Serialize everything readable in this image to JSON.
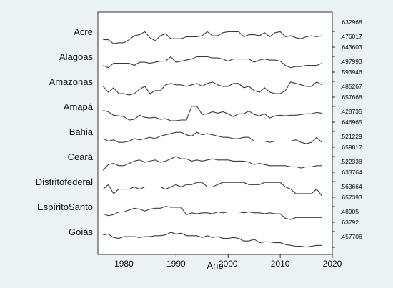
{
  "chart_data": {
    "type": "line",
    "xlabel": "Ano",
    "xlim": [
      1975,
      2020
    ],
    "x_ticks": [
      "1980",
      "1990",
      "2000",
      "2010",
      "2020"
    ],
    "panels": [
      {
        "name": "Acre",
        "max_label": ".632968",
        "min_label": ".476017",
        "ymin": 0.476017,
        "ymax": 0.632968,
        "x": [
          1976,
          1977,
          1978,
          1979,
          1980,
          1981,
          1982,
          1983,
          1984,
          1985,
          1986,
          1987,
          1988,
          1989,
          1990,
          1991,
          1992,
          1993,
          1994,
          1995,
          1996,
          1997,
          1998,
          1999,
          2000,
          2001,
          2002,
          2003,
          2004,
          2005,
          2006,
          2007,
          2008,
          2009,
          2010,
          2011,
          2012,
          2013,
          2014,
          2015,
          2016,
          2017,
          2018
        ],
        "values": [
          0.55,
          0.55,
          0.51,
          0.52,
          0.52,
          0.55,
          0.59,
          0.6,
          0.63,
          0.57,
          0.54,
          0.59,
          0.61,
          0.56,
          0.56,
          0.56,
          0.58,
          0.58,
          0.58,
          0.59,
          0.63,
          0.59,
          0.59,
          0.62,
          0.63,
          0.63,
          0.63,
          0.58,
          0.6,
          0.6,
          0.59,
          0.62,
          0.58,
          0.62,
          0.63,
          0.58,
          0.59,
          0.57,
          0.56,
          0.58,
          0.59,
          0.58,
          0.59
        ]
      },
      {
        "name": "Alagoas",
        "max_label": ".643603",
        "min_label": ".497993",
        "ymin": 0.497993,
        "ymax": 0.643603,
        "x": [
          1976,
          1977,
          1978,
          1979,
          1980,
          1981,
          1982,
          1983,
          1984,
          1985,
          1986,
          1987,
          1988,
          1989,
          1990,
          1991,
          1992,
          1993,
          1994,
          1995,
          1996,
          1997,
          1998,
          1999,
          2000,
          2001,
          2002,
          2003,
          2004,
          2005,
          2006,
          2007,
          2008,
          2009,
          2010,
          2011,
          2012,
          2013,
          2014,
          2015,
          2016,
          2017,
          2018
        ],
        "values": [
          0.56,
          0.54,
          0.58,
          0.58,
          0.58,
          0.58,
          0.56,
          0.59,
          0.59,
          0.58,
          0.59,
          0.6,
          0.6,
          0.64,
          0.59,
          0.6,
          0.61,
          0.62,
          0.64,
          0.64,
          0.64,
          0.63,
          0.63,
          0.62,
          0.6,
          0.62,
          0.62,
          0.62,
          0.62,
          0.59,
          0.61,
          0.62,
          0.61,
          0.61,
          0.6,
          0.56,
          0.54,
          0.55,
          0.55,
          0.56,
          0.56,
          0.56,
          0.58
        ]
      },
      {
        "name": "Amazonas",
        "max_label": ".593946",
        "min_label": ".485267",
        "ymin": 0.485267,
        "ymax": 0.593946,
        "x": [
          1976,
          1977,
          1978,
          1979,
          1980,
          1981,
          1982,
          1983,
          1984,
          1985,
          1986,
          1987,
          1988,
          1989,
          1990,
          1991,
          1992,
          1993,
          1994,
          1995,
          1996,
          1997,
          1998,
          1999,
          2000,
          2001,
          2002,
          2003,
          2004,
          2005,
          2006,
          2007,
          2008,
          2009,
          2010,
          2011,
          2012,
          2013,
          2014,
          2015,
          2016,
          2017,
          2018
        ],
        "values": [
          0.56,
          0.52,
          0.55,
          0.51,
          0.51,
          0.5,
          0.51,
          0.54,
          0.56,
          0.51,
          0.53,
          0.53,
          0.57,
          0.58,
          0.57,
          0.57,
          0.56,
          0.57,
          0.58,
          0.56,
          0.58,
          0.59,
          0.57,
          0.56,
          0.56,
          0.58,
          0.58,
          0.55,
          0.56,
          0.53,
          0.52,
          0.55,
          0.52,
          0.51,
          0.51,
          0.53,
          0.59,
          0.58,
          0.57,
          0.56,
          0.56,
          0.59,
          0.57
        ]
      },
      {
        "name": "Amapá",
        "max_label": ".657668",
        "min_label": ".428735",
        "ymin": 0.428735,
        "ymax": 0.657668,
        "x": [
          1976,
          1977,
          1978,
          1979,
          1980,
          1981,
          1982,
          1983,
          1984,
          1985,
          1986,
          1987,
          1988,
          1989,
          1990,
          1991,
          1992,
          1993,
          1994,
          1995,
          1996,
          1997,
          1998,
          1999,
          2000,
          2001,
          2002,
          2003,
          2004,
          2005,
          2006,
          2007,
          2008,
          2009,
          2010,
          2011,
          2012,
          2013,
          2014,
          2015,
          2016,
          2017,
          2018
        ],
        "values": [
          0.6,
          0.58,
          0.53,
          0.52,
          0.51,
          0.46,
          0.47,
          0.53,
          0.5,
          0.49,
          0.5,
          0.47,
          0.48,
          0.45,
          0.45,
          0.46,
          0.46,
          0.66,
          0.66,
          0.54,
          0.55,
          0.58,
          0.56,
          0.58,
          0.55,
          0.51,
          0.55,
          0.55,
          0.59,
          0.54,
          0.52,
          0.55,
          0.49,
          0.52,
          0.53,
          0.52,
          0.53,
          0.53,
          0.54,
          0.55,
          0.55,
          0.57,
          0.56
        ]
      },
      {
        "name": "Bahia",
        "max_label": ".646965",
        "min_label": ".521229",
        "ymin": 0.521229,
        "ymax": 0.646965,
        "x": [
          1976,
          1977,
          1978,
          1979,
          1980,
          1981,
          1982,
          1983,
          1984,
          1985,
          1986,
          1987,
          1988,
          1989,
          1990,
          1991,
          1992,
          1993,
          1994,
          1995,
          1996,
          1997,
          1998,
          1999,
          2000,
          2001,
          2002,
          2003,
          2004,
          2005,
          2006,
          2007,
          2008,
          2009,
          2010,
          2011,
          2012,
          2013,
          2014,
          2015,
          2016,
          2017,
          2018
        ],
        "values": [
          0.59,
          0.57,
          0.58,
          0.56,
          0.56,
          0.57,
          0.59,
          0.58,
          0.59,
          0.6,
          0.59,
          0.61,
          0.62,
          0.63,
          0.64,
          0.64,
          0.62,
          0.61,
          0.64,
          0.62,
          0.63,
          0.62,
          0.61,
          0.6,
          0.6,
          0.59,
          0.59,
          0.6,
          0.6,
          0.57,
          0.57,
          0.57,
          0.56,
          0.57,
          0.57,
          0.57,
          0.57,
          0.58,
          0.56,
          0.55,
          0.56,
          0.6,
          0.56
        ]
      },
      {
        "name": "Ceará",
        "max_label": ".659817",
        "min_label": ".522338",
        "ymin": 0.522338,
        "ymax": 0.659817,
        "x": [
          1976,
          1977,
          1978,
          1979,
          1980,
          1981,
          1982,
          1983,
          1984,
          1985,
          1986,
          1987,
          1988,
          1989,
          1990,
          1991,
          1992,
          1993,
          1994,
          1995,
          1996,
          1997,
          1998,
          1999,
          2000,
          2001,
          2002,
          2003,
          2004,
          2005,
          2006,
          2007,
          2008,
          2009,
          2010,
          2011,
          2012,
          2013,
          2014,
          2015,
          2016,
          2017,
          2018
        ],
        "values": [
          0.54,
          0.59,
          0.6,
          0.58,
          0.58,
          0.6,
          0.62,
          0.63,
          0.61,
          0.62,
          0.63,
          0.61,
          0.62,
          0.64,
          0.66,
          0.64,
          0.64,
          0.62,
          0.63,
          0.62,
          0.63,
          0.64,
          0.63,
          0.63,
          0.63,
          0.62,
          0.62,
          0.62,
          0.61,
          0.59,
          0.6,
          0.59,
          0.58,
          0.58,
          0.58,
          0.58,
          0.57,
          0.57,
          0.56,
          0.57,
          0.57,
          0.58,
          0.58
        ]
      },
      {
        "name": "Distritofederal",
        "max_label": ".633764",
        "min_label": ".563664",
        "ymin": 0.563664,
        "ymax": 0.633764,
        "x": [
          1976,
          1977,
          1978,
          1979,
          1980,
          1981,
          1982,
          1983,
          1984,
          1985,
          1986,
          1987,
          1988,
          1989,
          1990,
          1991,
          1992,
          1993,
          1994,
          1995,
          1996,
          1997,
          1998,
          1999,
          2000,
          2001,
          2002,
          2003,
          2004,
          2005,
          2006,
          2007,
          2008,
          2009,
          2010,
          2011,
          2012,
          2013,
          2014,
          2015,
          2016,
          2017,
          2018
        ],
        "values": [
          0.6,
          0.62,
          0.58,
          0.6,
          0.6,
          0.6,
          0.61,
          0.6,
          0.61,
          0.61,
          0.61,
          0.61,
          0.6,
          0.61,
          0.62,
          0.61,
          0.62,
          0.62,
          0.63,
          0.63,
          0.61,
          0.61,
          0.62,
          0.63,
          0.63,
          0.63,
          0.63,
          0.63,
          0.62,
          0.62,
          0.62,
          0.63,
          0.63,
          0.63,
          0.63,
          0.61,
          0.6,
          0.58,
          0.58,
          0.58,
          0.58,
          0.6,
          0.57
        ]
      },
      {
        "name": "EspíritoSanto",
        "max_label": ".657393",
        "min_label": ".48905",
        "ymin": 0.48905,
        "ymax": 0.657393,
        "x": [
          1976,
          1977,
          1978,
          1979,
          1980,
          1981,
          1982,
          1983,
          1984,
          1985,
          1986,
          1987,
          1988,
          1989,
          1990,
          1991,
          1992,
          1993,
          1994,
          1995,
          1996,
          1997,
          1998,
          1999,
          2000,
          2001,
          2002,
          2003,
          2004,
          2005,
          2006,
          2007,
          2008,
          2009,
          2010,
          2011,
          2012,
          2013,
          2014,
          2015,
          2016,
          2017,
          2018
        ],
        "values": [
          0.58,
          0.56,
          0.57,
          0.6,
          0.6,
          0.62,
          0.64,
          0.63,
          0.61,
          0.63,
          0.64,
          0.64,
          0.66,
          0.65,
          0.65,
          0.65,
          0.57,
          0.59,
          0.58,
          0.59,
          0.59,
          0.58,
          0.6,
          0.59,
          0.6,
          0.6,
          0.6,
          0.59,
          0.6,
          0.59,
          0.59,
          0.58,
          0.59,
          0.58,
          0.58,
          0.53,
          0.52,
          0.54,
          0.54,
          0.54,
          0.54,
          0.54,
          0.54
        ]
      },
      {
        "name": "Goiás",
        "max_label": ".63792",
        "min_label": ".457706",
        "ymin": 0.457706,
        "ymax": 0.63792,
        "x": [
          1976,
          1977,
          1978,
          1979,
          1980,
          1981,
          1982,
          1983,
          1984,
          1985,
          1986,
          1987,
          1988,
          1989,
          1990,
          1991,
          1992,
          1993,
          1994,
          1995,
          1996,
          1997,
          1998,
          1999,
          2000,
          2001,
          2002,
          2003,
          2004,
          2005,
          2006,
          2007,
          2008,
          2009,
          2010,
          2011,
          2012,
          2013,
          2014,
          2015,
          2016,
          2017,
          2018
        ],
        "values": [
          0.6,
          0.61,
          0.57,
          0.56,
          0.58,
          0.58,
          0.58,
          0.57,
          0.58,
          0.58,
          0.59,
          0.59,
          0.6,
          0.63,
          0.61,
          0.62,
          0.59,
          0.59,
          0.59,
          0.57,
          0.59,
          0.57,
          0.58,
          0.56,
          0.56,
          0.57,
          0.56,
          0.53,
          0.53,
          0.55,
          0.51,
          0.52,
          0.52,
          0.51,
          0.51,
          0.49,
          0.48,
          0.47,
          0.47,
          0.46,
          0.47,
          0.48,
          0.48
        ]
      }
    ]
  }
}
